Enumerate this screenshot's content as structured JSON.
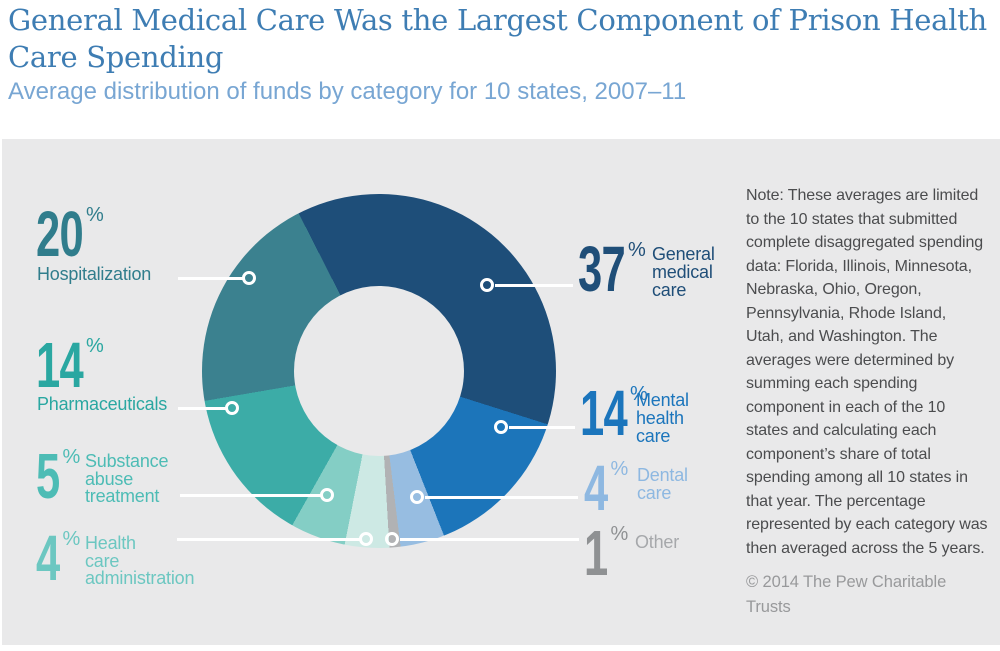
{
  "header": {
    "title": "General Medical Care Was the Largest Component of Prison Health Care Spending",
    "subtitle": "Average distribution of funds by category for 10 states, 2007–11"
  },
  "chart_data": {
    "type": "pie",
    "donut": true,
    "title": "Average distribution of funds by category for 10 states, 2007–11",
    "unit": "%",
    "start_angle_deg": -27,
    "direction": "clockwise",
    "segments": [
      {
        "category": "General medical care",
        "value": 37,
        "color": "#1e4e79"
      },
      {
        "category": "Mental health care",
        "value": 14,
        "color": "#1c75ba"
      },
      {
        "category": "Dental care",
        "value": 4,
        "color": "#97bde1"
      },
      {
        "category": "Other",
        "value": 1,
        "color": "#b1b2b4"
      },
      {
        "category": "Health care administration",
        "value": 4,
        "color": "#cde9e4"
      },
      {
        "category": "Substance abuse treatment",
        "value": 5,
        "color": "#84cec5"
      },
      {
        "category": "Pharmaceuticals",
        "value": 14,
        "color": "#3caca7"
      },
      {
        "category": "Hospitalization",
        "value": 20,
        "color": "#3b818f"
      }
    ]
  },
  "callouts": [
    {
      "id": "hospitalization",
      "value": "20",
      "unit": "%",
      "lines": [
        "Hospitalization"
      ],
      "color": "#307d8c"
    },
    {
      "id": "pharmaceuticals",
      "value": "14",
      "unit": "%",
      "lines": [
        "Pharmaceuticals"
      ],
      "color": "#2aa7a1"
    },
    {
      "id": "substance-abuse-treatment",
      "value": "5",
      "unit": "%",
      "lines": [
        "Substance",
        "abuse",
        "treatment"
      ],
      "color": "#4dbcb5"
    },
    {
      "id": "health-care-administration",
      "value": "4",
      "unit": "%",
      "lines": [
        "Health",
        "care",
        "administration"
      ],
      "color": "#6cc7c1"
    },
    {
      "id": "general-medical-care",
      "value": "37",
      "unit": "%",
      "lines": [
        "General",
        "medical",
        "care"
      ],
      "color": "#1f4e78"
    },
    {
      "id": "mental-health-care",
      "value": "14",
      "unit": "%",
      "lines": [
        "Mental",
        "health",
        "care"
      ],
      "color": "#1b75bc"
    },
    {
      "id": "dental-care",
      "value": "4",
      "unit": "%",
      "lines": [
        "Dental",
        "care"
      ],
      "color": "#8eb8e1"
    },
    {
      "id": "other",
      "value": "1",
      "unit": "%",
      "lines": [
        "Other"
      ],
      "color": "#8f9193",
      "label_color": "#a6a8ab"
    }
  ],
  "note": {
    "text": "Note: These averages are limited to the 10 states that submitted complete disaggregated spending data: Florida, Illinois, Minnesota, Nebraska, Ohio, Oregon, Pennsylvania, Rhode Island, Utah, and Washington. The averages were determined by summing each spending component in each of the 10 states and calculating each component’s share of total spending among all 10 states in that year. The percentage represented by each category was then averaged across the 5 years.",
    "credit": "© 2014 The Pew Charitable Trusts"
  },
  "colors": {
    "title": "#3e7db3",
    "subtitle": "#78a6d3",
    "panel_bg": "#e9e9ea",
    "page_bg": "#ffffff",
    "note_text": "#4b4c4e",
    "credit_text": "#98999b",
    "leader": "#ffffff"
  }
}
